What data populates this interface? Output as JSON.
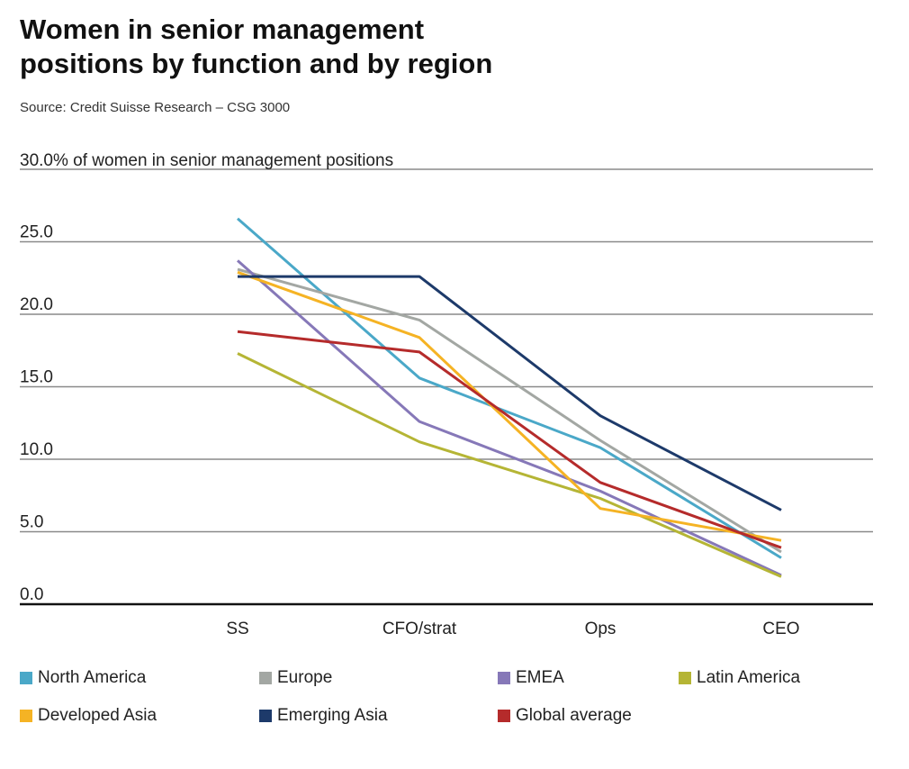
{
  "title_line1": "Women in senior management",
  "title_line2": "positions by function and by region",
  "source": "Source: Credit Suisse Research – CSG 3000",
  "chart_data": {
    "type": "line",
    "title": "Women in senior management positions by function and by region",
    "ylabel": "30.0% of women in senior management positions",
    "ylim": [
      0,
      30
    ],
    "yticks": [
      "0.0",
      "5.0",
      "10.0",
      "15.0",
      "20.0",
      "25.0"
    ],
    "categories": [
      "SS",
      "CFO/strat",
      "Ops",
      "CEO"
    ],
    "grid": true,
    "legend_position": "bottom",
    "series": [
      {
        "name": "North America",
        "color": "#4aa8c8",
        "values": [
          26.6,
          15.6,
          10.8,
          3.2
        ]
      },
      {
        "name": "Europe",
        "color": "#a3a7a3",
        "values": [
          23.1,
          19.6,
          11.3,
          3.6
        ]
      },
      {
        "name": "EMEA",
        "color": "#8678b8",
        "values": [
          23.7,
          12.6,
          7.8,
          2.0
        ]
      },
      {
        "name": "Latin America",
        "color": "#b5b535",
        "values": [
          17.3,
          11.2,
          7.3,
          1.9
        ]
      },
      {
        "name": "Developed Asia",
        "color": "#f5b324",
        "values": [
          22.9,
          18.4,
          6.6,
          4.4
        ]
      },
      {
        "name": "Emerging Asia",
        "color": "#1d3a6a",
        "values": [
          22.6,
          22.6,
          13.0,
          6.5
        ]
      },
      {
        "name": "Global average",
        "color": "#b52b2b",
        "values": [
          18.8,
          17.4,
          8.4,
          3.9
        ]
      }
    ]
  }
}
